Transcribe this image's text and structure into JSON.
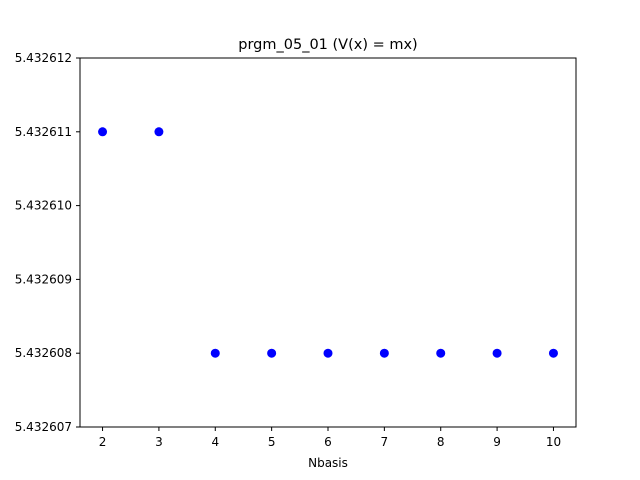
{
  "chart_data": {
    "type": "scatter",
    "title": "prgm_05_01 (V(x) = mx)",
    "xlabel": "Nbasis",
    "ylabel": "",
    "xlim": [
      1.6,
      10.4
    ],
    "ylim": [
      5.432607,
      5.432612
    ],
    "x_ticks": [
      2,
      3,
      4,
      5,
      6,
      7,
      8,
      9,
      10
    ],
    "y_ticks": [
      5.432607,
      5.432608,
      5.432609,
      5.43261,
      5.432611,
      5.432612
    ],
    "y_tick_labels": [
      "5.432607",
      "5.432608",
      "5.432609",
      "5.432610",
      "5.432611",
      "5.432612"
    ],
    "grid": false,
    "series": [
      {
        "color": "#0000ff",
        "x": [
          2,
          3,
          4,
          5,
          6,
          7,
          8,
          9,
          10
        ],
        "y": [
          5.432611,
          5.432611,
          5.432608,
          5.432608,
          5.432608,
          5.432608,
          5.432608,
          5.432608,
          5.432608
        ]
      }
    ]
  }
}
